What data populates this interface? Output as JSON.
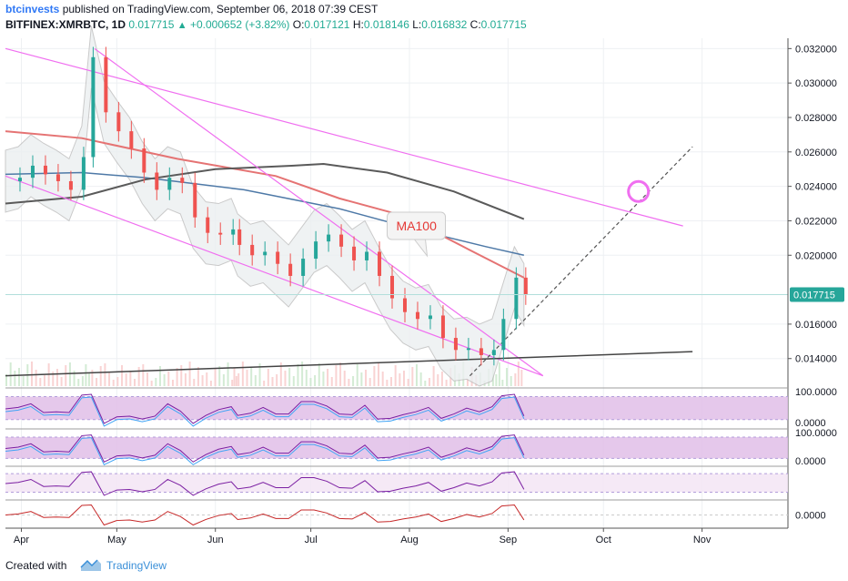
{
  "header": {
    "publisher": "btcinvests",
    "published_text": "published on TradingView.com, September 06, 2018 07:39 CEST",
    "symbol": "BITFINEX:XMRBTC, 1D",
    "last": "0.017715",
    "change_arrow": "▲",
    "change": "+0.000652 (+3.82%)",
    "o_label": "O:",
    "o": "0.017121",
    "h_label": "H:",
    "h": "0.018146",
    "l_label": "L:",
    "l": "0.016832",
    "c_label": "C:",
    "c": "0.017715"
  },
  "chart_data": {
    "type": "candlestick",
    "symbol": "BITFINEX:XMRBTC",
    "interval": "1D",
    "x_labels": [
      "Apr",
      "May",
      "Jun",
      "Jul",
      "Aug",
      "Sep",
      "Oct",
      "Nov"
    ],
    "y_ticks": [
      "0.032000",
      "0.030000",
      "0.028000",
      "0.026000",
      "0.024000",
      "0.022000",
      "0.020000",
      "0.016000",
      "0.014000"
    ],
    "ylim": [
      0.0124,
      0.0326
    ],
    "price_label": "0.017715",
    "annotation": "MA100",
    "close_series": [
      [
        "Mar 27",
        0.0243
      ],
      [
        "Mar 31",
        0.0245
      ],
      [
        "Apr 04",
        0.0252
      ],
      [
        "Apr 08",
        0.0247
      ],
      [
        "Apr 12",
        0.0243
      ],
      [
        "Apr 16",
        0.0238
      ],
      [
        "Apr 20",
        0.0257
      ],
      [
        "Apr 23",
        0.0315
      ],
      [
        "Apr 27",
        0.0283
      ],
      [
        "May 01",
        0.0272
      ],
      [
        "May 05",
        0.0262
      ],
      [
        "May 09",
        0.0248
      ],
      [
        "May 13",
        0.0238
      ],
      [
        "May 17",
        0.0245
      ],
      [
        "May 21",
        0.0242
      ],
      [
        "May 25",
        0.0222
      ],
      [
        "May 29",
        0.0213
      ],
      [
        "Jun 02",
        0.0212
      ],
      [
        "Jun 06",
        0.0215
      ],
      [
        "Jun 08",
        0.0206
      ],
      [
        "Jun 12",
        0.02
      ],
      [
        "Jun 16",
        0.0202
      ],
      [
        "Jun 20",
        0.0195
      ],
      [
        "Jun 24",
        0.0188
      ],
      [
        "Jun 28",
        0.0198
      ],
      [
        "Jul 02",
        0.0208
      ],
      [
        "Jul 06",
        0.0212
      ],
      [
        "Jul 10",
        0.0205
      ],
      [
        "Jul 14",
        0.0197
      ],
      [
        "Jul 18",
        0.0202
      ],
      [
        "Jul 22",
        0.0188
      ],
      [
        "Jul 26",
        0.0175
      ],
      [
        "Jul 30",
        0.0167
      ],
      [
        "Aug 03",
        0.0163
      ],
      [
        "Aug 07",
        0.0165
      ],
      [
        "Aug 11",
        0.0152
      ],
      [
        "Aug 15",
        0.0145
      ],
      [
        "Aug 19",
        0.0146
      ],
      [
        "Aug 23",
        0.0142
      ],
      [
        "Aug 27",
        0.0145
      ],
      [
        "Aug 30",
        0.0163
      ],
      [
        "Sep 03",
        0.0187
      ],
      [
        "Sep 06",
        0.017715
      ]
    ],
    "ma100": [
      [
        "Mar 27",
        0.0272
      ],
      [
        "Apr 20",
        0.0268
      ],
      [
        "May 20",
        0.0256
      ],
      [
        "Jun 20",
        0.0246
      ],
      [
        "Jul 10",
        0.0233
      ],
      [
        "Jul 30",
        0.0223
      ],
      [
        "Aug 20",
        0.0203
      ],
      [
        "Sep 06",
        0.0187
      ]
    ],
    "ma200": [
      [
        "Mar 27",
        0.023
      ],
      [
        "Apr 20",
        0.0234
      ],
      [
        "May 10",
        0.0244
      ],
      [
        "Jun 01",
        0.025
      ],
      [
        "Jun 25",
        0.0252
      ],
      [
        "Jul 05",
        0.0253
      ],
      [
        "Jul 25",
        0.0248
      ],
      [
        "Aug 15",
        0.0237
      ],
      [
        "Sep 06",
        0.0221
      ]
    ],
    "ma50": [
      [
        "Mar 27",
        0.0247
      ],
      [
        "Apr 20",
        0.0248
      ],
      [
        "May 10",
        0.0245
      ],
      [
        "Jun 10",
        0.0238
      ],
      [
        "Jul 10",
        0.0227
      ],
      [
        "Aug 05",
        0.0214
      ],
      [
        "Aug 25",
        0.0205
      ],
      [
        "Sep 06",
        0.02
      ]
    ],
    "trendlines": [
      {
        "from": [
          "Mar 27",
          0.032
        ],
        "to": [
          "Oct 26",
          0.0217
        ]
      },
      {
        "from": [
          "Apr 24",
          0.032
        ],
        "to": [
          "Sep 12",
          0.013
        ]
      },
      {
        "from": [
          "Mar 27",
          0.0246
        ],
        "to": [
          "Sep 12",
          0.013
        ]
      },
      {
        "from": [
          "Mar 27",
          0.013
        ],
        "to": [
          "Oct 29",
          0.0144
        ]
      },
      {
        "from": [
          "Aug 20",
          0.013
        ],
        "to": [
          "Oct 29",
          0.0263
        ]
      }
    ],
    "oscillators": [
      {
        "top_label": "100.0000",
        "bottom_label": "0.0000"
      },
      {
        "top_label": "100.0000",
        "bottom_label": "0.0000"
      },
      {
        "top_label": "",
        "bottom_label": ""
      },
      {
        "top_label": "",
        "bottom_label": "0.0000"
      }
    ]
  },
  "colors": {
    "up": "#26a69a",
    "down": "#ef5350",
    "ma100": "#e57373",
    "ma200": "#5a5a5a",
    "ma50": "#4e79a7",
    "trendline": "#f06ff0",
    "band": "#bdbdbd",
    "osc_fill": "#e1bee7"
  },
  "footer": {
    "created_with": "Created with",
    "brand": "TradingView"
  }
}
